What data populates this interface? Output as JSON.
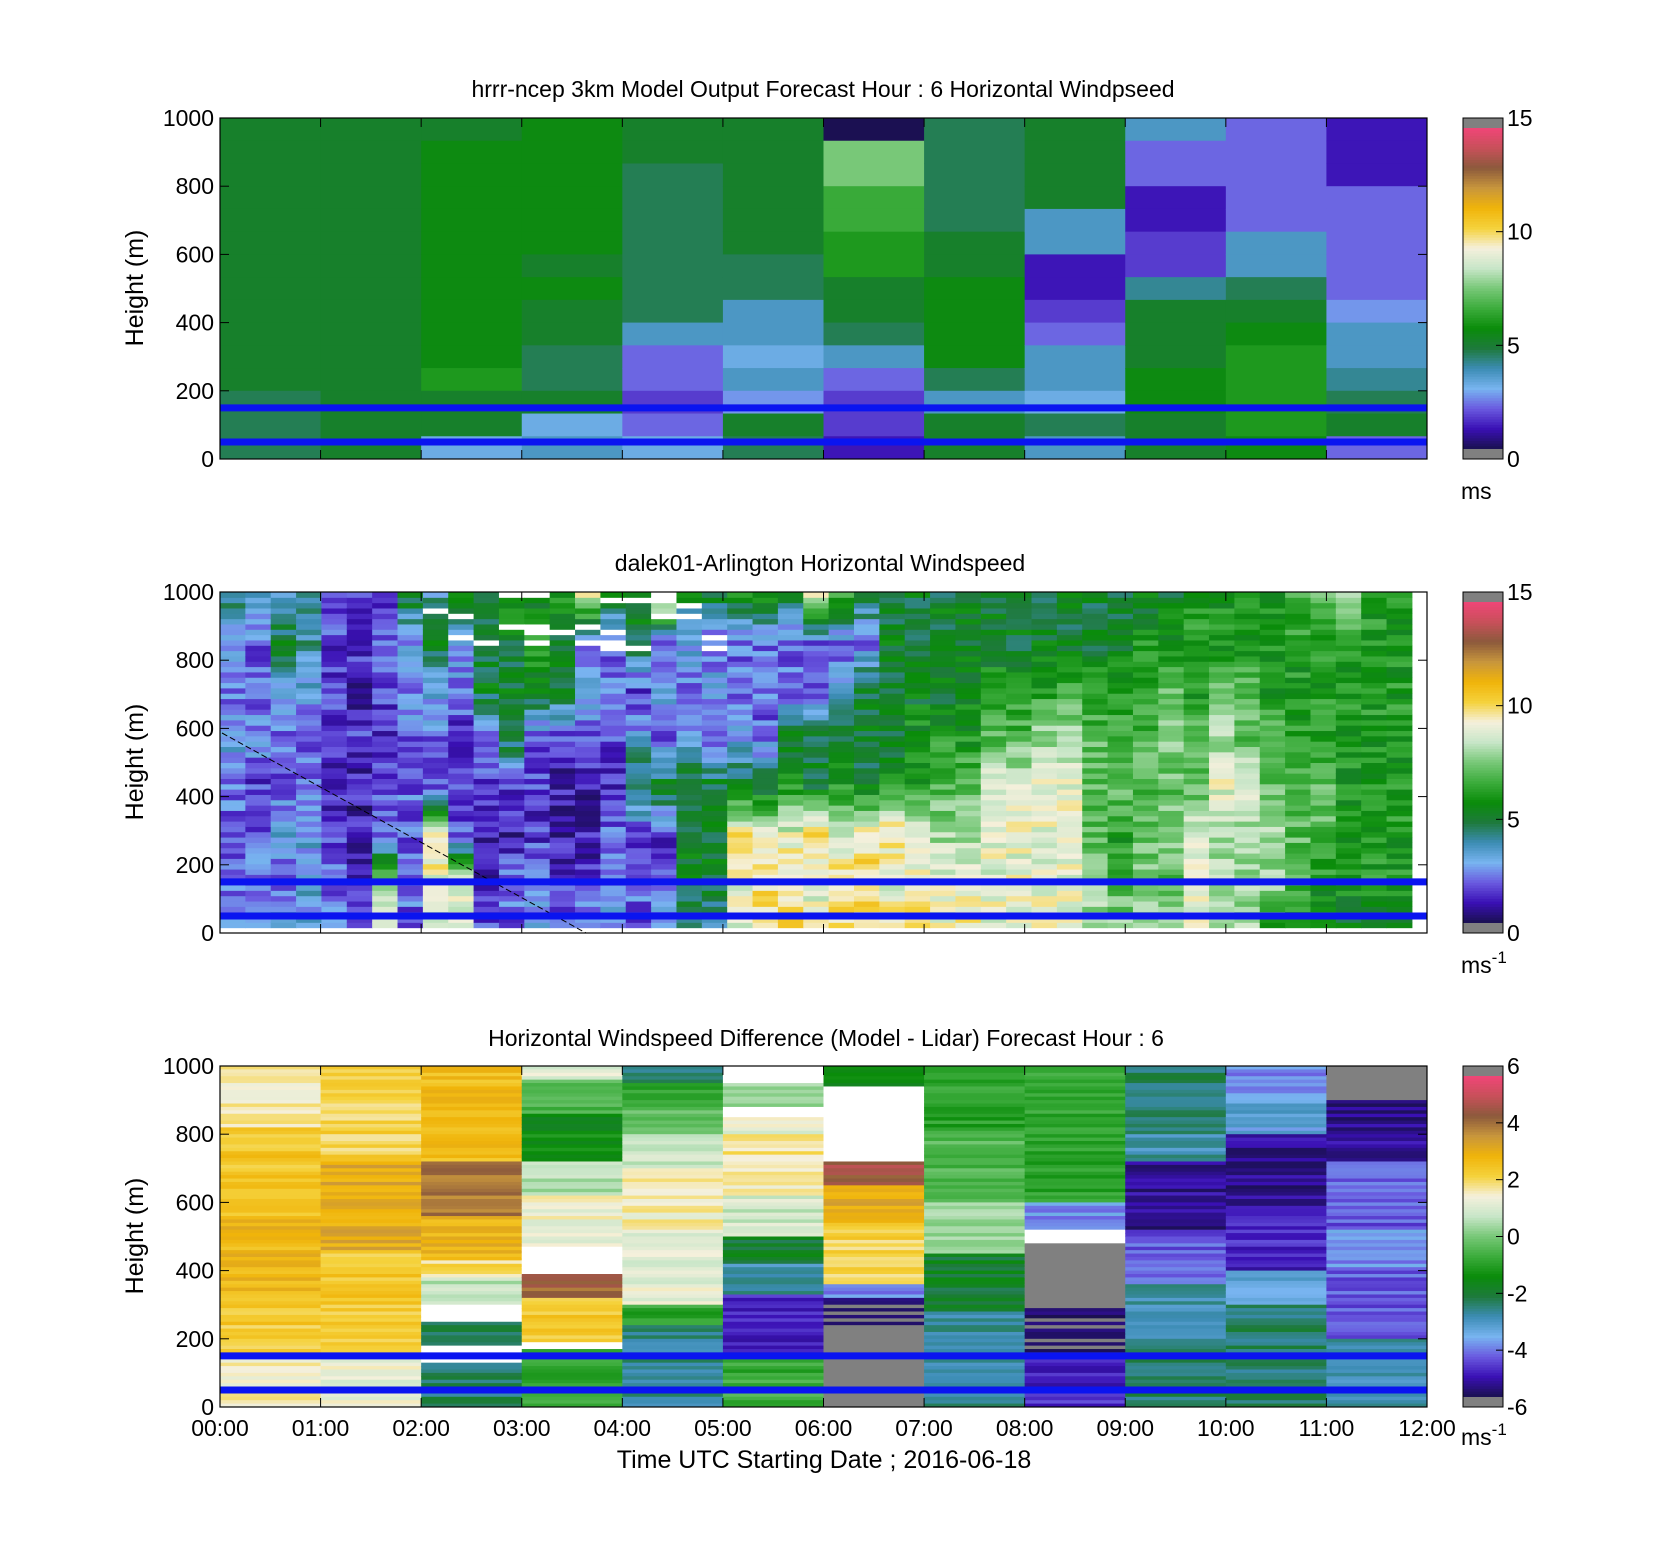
{
  "colormap": {
    "name": "windspeed",
    "stops": [
      "#808080",
      "#1a1050",
      "#3a10b4",
      "#6a5ae0",
      "#78b4f0",
      "#3c8cb4",
      "#1e7a3c",
      "#0a8c0a",
      "#3cac3c",
      "#78c878",
      "#c8e6c8",
      "#f5f0dc",
      "#f5d23c",
      "#f0b40a",
      "#c8963c",
      "#8c5a3c",
      "#c8505a",
      "#f04678",
      "#808080"
    ]
  },
  "x_time_labels": [
    "00:00",
    "01:00",
    "02:00",
    "03:00",
    "04:00",
    "05:00",
    "06:00",
    "07:00",
    "08:00",
    "09:00",
    "10:00",
    "11:00",
    "12:00"
  ],
  "xlabel": "Time UTC  Starting Date ; 2016-06-18",
  "reference_heights_m": [
    150,
    50
  ],
  "chart_data": [
    {
      "type": "heatmap",
      "title": "hrrr-ncep 3km Model Output   Forecast Hour : 6 Horizontal Windpseed",
      "ylabel": "Height (m)",
      "ylim": [
        0,
        1000
      ],
      "yticks": [
        "0",
        "200",
        "400",
        "600",
        "800",
        "1000"
      ],
      "colorbar": {
        "range": [
          0,
          15
        ],
        "ticks": [
          "0",
          "5",
          "10",
          "15"
        ],
        "unit": "ms",
        "unit_sup": ""
      },
      "x_hours": [
        0,
        1,
        2,
        3,
        4,
        5,
        6,
        7,
        8,
        9,
        10,
        11
      ],
      "column_values_top_to_bottom": [
        [
          5,
          5,
          5,
          5,
          5,
          5,
          5,
          5,
          5,
          5,
          5,
          5,
          4.5,
          4.5,
          4.5
        ],
        [
          5,
          5,
          5,
          5,
          5,
          5,
          5,
          5,
          5,
          5,
          5,
          5,
          5,
          5,
          5
        ],
        [
          5,
          5.5,
          5.5,
          5.5,
          5.5,
          5.5,
          5.5,
          5.5,
          5.5,
          5.5,
          5.5,
          6,
          5,
          5,
          3
        ],
        [
          5.5,
          5.5,
          5.5,
          5.5,
          5.5,
          5.5,
          5,
          5.5,
          5,
          5,
          4.5,
          4.5,
          5,
          3,
          3.5
        ],
        [
          5,
          5,
          4.5,
          4.5,
          4.5,
          4.5,
          4.5,
          4.5,
          4.5,
          3.5,
          2,
          2,
          1.5,
          2,
          3
        ],
        [
          5,
          5,
          5,
          5,
          5,
          5,
          4.5,
          4.5,
          3.5,
          3.5,
          3,
          3.5,
          2.5,
          5,
          4.5
        ],
        [
          0,
          7.5,
          7.5,
          6.5,
          6.5,
          6,
          6,
          5,
          5,
          4.5,
          3.5,
          2,
          1.5,
          1.5,
          1
        ],
        [
          4.5,
          4.5,
          4.5,
          4.5,
          4.5,
          5,
          5,
          5.5,
          5.5,
          5.5,
          5.5,
          4.5,
          3.5,
          5,
          5
        ],
        [
          5,
          5,
          5,
          5,
          3.5,
          3.5,
          1,
          1,
          1.5,
          2,
          3.5,
          3.5,
          3,
          4.5,
          3.5
        ],
        [
          3.5,
          2,
          2,
          1,
          1,
          1.5,
          1.5,
          4,
          5,
          5,
          5,
          5.5,
          5.5,
          5,
          5
        ],
        [
          2,
          2,
          2,
          2,
          2,
          3.5,
          3.5,
          4.5,
          5,
          5.5,
          6,
          6,
          6,
          6,
          5.5
        ],
        [
          1,
          1,
          1,
          2,
          2,
          2,
          2,
          2,
          2.5,
          3.5,
          3.5,
          4,
          4.5,
          5,
          2
        ]
      ]
    },
    {
      "type": "heatmap",
      "title": "dalek01-Arlington  Horizontal Windspeed",
      "ylabel": "Height (m)",
      "ylim": [
        0,
        1000
      ],
      "yticks": [
        "0",
        "200",
        "400",
        "600",
        "800",
        "1000"
      ],
      "colorbar": {
        "range": [
          0,
          15
        ],
        "ticks": [
          "0",
          "5",
          "10",
          "15"
        ],
        "unit": "ms",
        "unit_sup": "-1"
      },
      "x_hours_end": 11.85,
      "column_keyframes_bottom_up": [
        [
          3,
          2,
          2,
          2,
          3,
          2,
          3,
          4
        ],
        [
          3,
          2,
          2,
          1.5,
          2.5,
          2,
          2,
          4
        ],
        [
          4,
          2,
          3,
          2,
          2,
          2.5,
          5,
          3
        ],
        [
          3,
          3,
          3,
          2,
          2,
          3,
          4,
          4
        ],
        [
          2,
          2,
          1.5,
          1,
          1.5,
          1.5,
          1.5,
          2
        ],
        [
          2,
          1.5,
          1,
          1,
          1.5,
          1,
          1.5,
          1.5
        ],
        [
          9,
          8,
          2,
          2,
          1.5,
          1.5,
          2,
          1.5
        ],
        [
          2,
          2,
          2,
          2,
          2,
          2.5,
          2.5,
          5
        ],
        [
          8,
          9,
          10,
          2,
          2,
          3,
          5,
          3.5
        ],
        [
          9,
          9,
          2,
          1.5,
          1.5,
          2,
          3,
          5
        ],
        [
          2,
          1,
          1,
          1.5,
          2,
          5,
          5,
          5
        ],
        [
          2,
          2,
          1,
          1.5,
          5,
          5,
          5,
          6
        ],
        [
          3,
          2,
          1.5,
          1.5,
          2,
          5,
          6,
          5
        ],
        [
          2,
          1.5,
          1,
          1,
          1.5,
          5,
          5,
          6
        ],
        [
          3,
          1.5,
          1,
          1,
          1.5,
          3,
          2.5,
          9
        ],
        [
          3,
          2,
          2,
          1.5,
          1.5,
          2,
          2,
          5
        ],
        [
          2,
          2,
          1.5,
          5,
          3,
          1.5,
          5,
          5
        ],
        [
          3,
          2,
          1.5,
          5,
          2,
          3,
          2,
          10
        ],
        [
          4,
          5,
          5,
          5,
          3,
          2,
          3,
          5
        ],
        [
          4,
          5,
          5,
          5,
          2,
          3,
          2,
          5
        ],
        [
          9,
          9,
          10,
          5,
          3,
          2,
          2,
          6
        ],
        [
          10,
          10,
          9,
          5,
          2,
          2,
          2,
          6
        ],
        [
          10,
          10,
          9,
          6,
          5,
          2,
          2,
          5
        ],
        [
          9,
          9,
          10,
          5,
          5,
          2,
          2,
          9
        ],
        [
          10,
          10,
          9,
          6,
          5,
          3,
          2,
          7
        ],
        [
          10,
          10,
          10,
          5,
          5,
          5,
          2,
          5
        ],
        [
          10,
          9,
          10,
          6,
          5,
          5,
          5,
          5
        ],
        [
          10,
          9,
          9,
          6,
          6,
          5,
          5,
          5
        ],
        [
          9,
          9,
          8,
          7,
          6,
          5,
          5,
          5
        ],
        [
          10,
          9,
          8,
          7,
          6,
          5,
          5,
          5
        ],
        [
          9,
          9,
          9,
          9,
          7,
          6,
          5,
          5
        ],
        [
          9,
          9,
          9,
          9,
          7,
          6,
          5,
          5
        ],
        [
          9,
          9,
          9,
          9,
          8,
          6,
          5,
          5
        ],
        [
          9,
          9,
          9,
          9,
          8,
          7,
          5,
          5
        ],
        [
          8,
          8,
          7,
          7,
          7,
          6,
          5,
          5
        ],
        [
          8,
          7,
          6,
          7,
          7,
          6,
          5,
          5
        ],
        [
          8,
          8,
          7,
          7,
          7,
          6,
          6,
          5
        ],
        [
          8,
          7,
          8,
          7,
          8,
          7,
          6,
          5
        ],
        [
          9,
          9,
          9,
          7,
          7,
          6,
          6,
          6
        ],
        [
          8,
          8,
          8,
          9,
          8,
          7,
          6,
          6
        ],
        [
          8,
          8,
          8,
          9,
          7,
          7,
          6,
          6
        ],
        [
          6,
          8,
          8,
          7,
          7,
          6,
          6,
          6
        ],
        [
          5,
          7,
          7,
          7,
          6,
          6,
          6,
          7
        ],
        [
          5,
          6,
          7,
          7,
          6,
          6,
          6,
          7
        ],
        [
          5,
          6,
          6,
          6,
          6,
          6,
          6,
          8
        ],
        [
          5,
          6,
          6,
          6,
          6,
          6,
          6,
          6
        ],
        [
          5,
          6,
          6,
          6,
          6,
          6,
          6,
          6
        ]
      ]
    },
    {
      "type": "heatmap",
      "title": "Horizontal Windspeed Difference (Model - Lidar) Forecast Hour : 6",
      "ylabel": "Height (m)",
      "ylim": [
        0,
        1000
      ],
      "yticks": [
        "0",
        "200",
        "400",
        "600",
        "800",
        "1000"
      ],
      "colorbar": {
        "range": [
          -6,
          6
        ],
        "ticks": [
          "-6",
          "-4",
          "-2",
          "0",
          "2",
          "4",
          "6"
        ],
        "unit": "ms",
        "unit_sup": "-1"
      },
      "x_hours": [
        0,
        1,
        2,
        3,
        4,
        5,
        6,
        7,
        8,
        9,
        10,
        11
      ],
      "column_segments_top_to_bottom": [
        [
          [
            1000,
            820,
            1.6
          ],
          [
            820,
            560,
            2.6
          ],
          [
            560,
            330,
            2.9
          ],
          [
            330,
            150,
            2.4
          ],
          [
            150,
            0,
            1.6
          ]
        ],
        [
          [
            1000,
            720,
            2.2
          ],
          [
            720,
            460,
            3.2
          ],
          [
            460,
            160,
            2.5
          ],
          [
            160,
            0,
            1.3
          ]
        ],
        [
          [
            1000,
            720,
            2.8
          ],
          [
            720,
            560,
            4.2
          ],
          [
            560,
            430,
            3
          ],
          [
            430,
            380,
            2
          ],
          [
            380,
            300,
            0.7
          ],
          [
            300,
            250,
            99
          ],
          [
            250,
            180,
            -2.5
          ],
          [
            180,
            130,
            99
          ],
          [
            130,
            0,
            -2.5
          ]
        ],
        [
          [
            1000,
            960,
            1.2
          ],
          [
            960,
            860,
            -0.5
          ],
          [
            860,
            720,
            -1.5
          ],
          [
            720,
            620,
            0.6
          ],
          [
            620,
            470,
            1.4
          ],
          [
            470,
            390,
            99
          ],
          [
            390,
            320,
            4.4
          ],
          [
            320,
            190,
            2.4
          ],
          [
            190,
            170,
            99
          ],
          [
            170,
            0,
            -0.8
          ]
        ],
        [
          [
            1000,
            950,
            -2.5
          ],
          [
            950,
            900,
            -1
          ],
          [
            900,
            800,
            -0.4
          ],
          [
            800,
            700,
            0.9
          ],
          [
            700,
            520,
            1.6
          ],
          [
            520,
            300,
            1.2
          ],
          [
            300,
            240,
            -1
          ],
          [
            240,
            0,
            -2.8
          ]
        ],
        [
          [
            1000,
            950,
            99
          ],
          [
            950,
            880,
            0.4
          ],
          [
            880,
            850,
            99
          ],
          [
            850,
            800,
            1.3
          ],
          [
            800,
            620,
            1.8
          ],
          [
            620,
            500,
            0.9
          ],
          [
            500,
            420,
            -2
          ],
          [
            420,
            330,
            -3
          ],
          [
            330,
            150,
            -5
          ],
          [
            150,
            0,
            -0.8
          ]
        ],
        [
          [
            1000,
            940,
            -1.5
          ],
          [
            940,
            720,
            99
          ],
          [
            720,
            650,
            4.8
          ],
          [
            650,
            540,
            3.2
          ],
          [
            540,
            360,
            2.2
          ],
          [
            360,
            320,
            -4
          ],
          [
            320,
            240,
            -6
          ],
          [
            240,
            0,
            -8
          ]
        ],
        [
          [
            1000,
            800,
            -1
          ],
          [
            800,
            600,
            -0.5
          ],
          [
            600,
            450,
            0.4
          ],
          [
            450,
            280,
            -2
          ],
          [
            280,
            0,
            -2.8
          ]
        ],
        [
          [
            1000,
            850,
            -1
          ],
          [
            850,
            600,
            -1
          ],
          [
            600,
            520,
            -4
          ],
          [
            520,
            480,
            99
          ],
          [
            480,
            300,
            -8
          ],
          [
            300,
            150,
            -6
          ],
          [
            150,
            0,
            -5
          ]
        ],
        [
          [
            1000,
            800,
            -2.5
          ],
          [
            800,
            720,
            -3
          ],
          [
            720,
            520,
            -5.5
          ],
          [
            520,
            360,
            -4.5
          ],
          [
            360,
            200,
            -3
          ],
          [
            200,
            0,
            -2.5
          ]
        ],
        [
          [
            1000,
            900,
            -4
          ],
          [
            900,
            800,
            -3.5
          ],
          [
            800,
            560,
            -5.5
          ],
          [
            560,
            400,
            -5
          ],
          [
            400,
            300,
            -3.5
          ],
          [
            300,
            0,
            -2.5
          ]
        ],
        [
          [
            1000,
            900,
            -8
          ],
          [
            900,
            720,
            -5.5
          ],
          [
            720,
            520,
            -4.5
          ],
          [
            520,
            400,
            -4
          ],
          [
            400,
            200,
            -4.5
          ],
          [
            200,
            0,
            -3
          ]
        ]
      ]
    }
  ]
}
